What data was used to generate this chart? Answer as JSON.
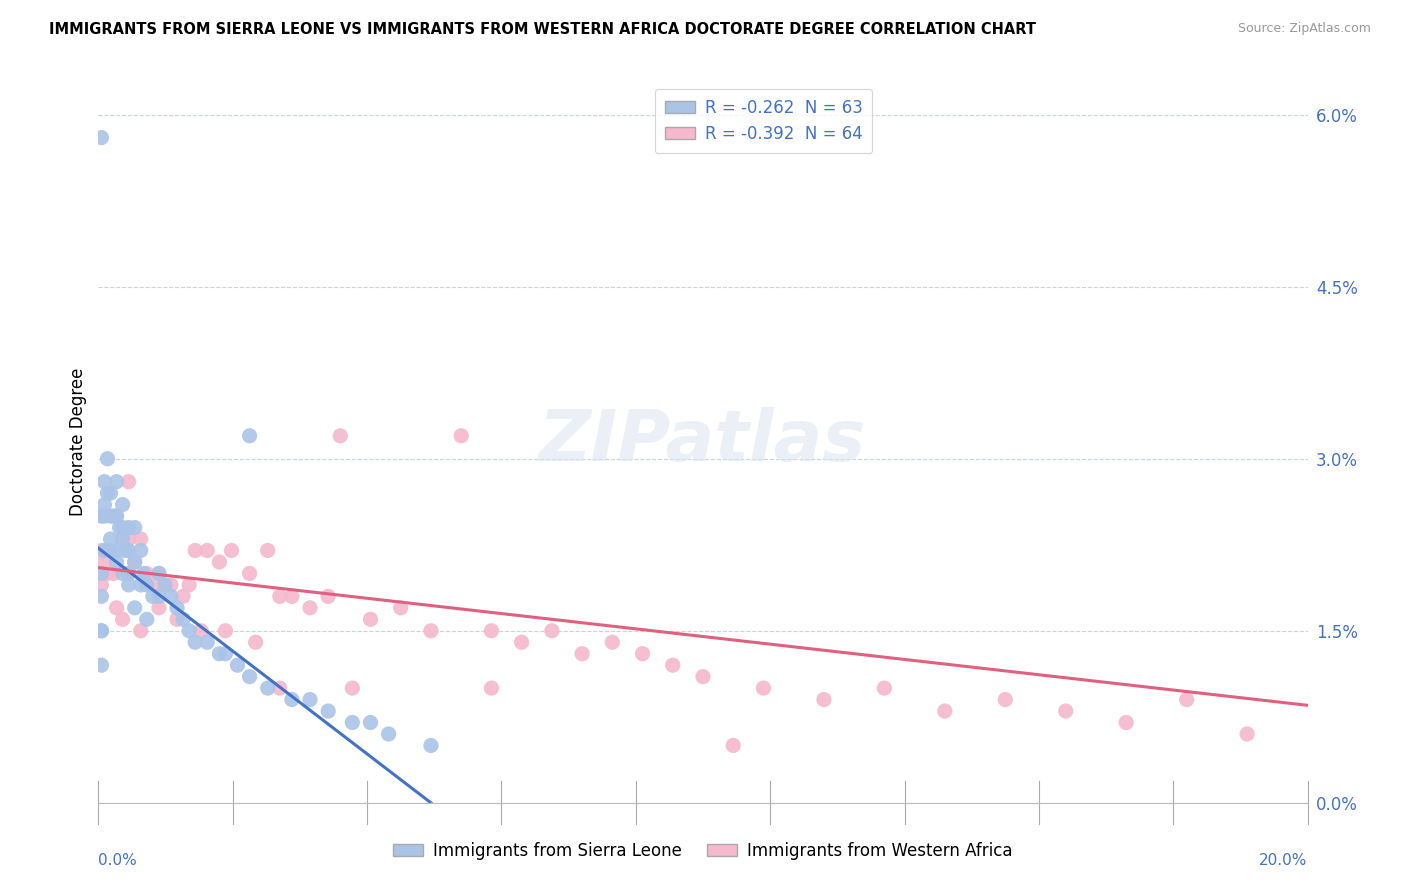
{
  "title": "IMMIGRANTS FROM SIERRA LEONE VS IMMIGRANTS FROM WESTERN AFRICA DOCTORATE DEGREE CORRELATION CHART",
  "source": "Source: ZipAtlas.com",
  "ylabel": "Doctorate Degree",
  "bottom_legend_blue": "Immigrants from Sierra Leone",
  "bottom_legend_pink": "Immigrants from Western Africa",
  "legend_blue_label": "R = -0.262  N = 63",
  "legend_pink_label": "R = -0.392  N = 64",
  "blue_color": "#aac4e8",
  "pink_color": "#f5b8cc",
  "blue_line_color": "#4472c4",
  "pink_line_color": "#e06080",
  "dashed_line_color": "#9ab0cc",
  "text_color_blue": "#4472c4",
  "xlim": [
    0.0,
    20.0
  ],
  "ylim": [
    0.0,
    6.3
  ],
  "yticks": [
    0.0,
    1.5,
    3.0,
    4.5,
    6.0
  ],
  "ytick_labels": [
    "0.0%",
    "1.5%",
    "3.0%",
    "4.5%",
    "6.0%"
  ],
  "blue_line_x0": 0.0,
  "blue_line_y0": 2.22,
  "blue_line_x1": 5.5,
  "blue_line_y1": 0.0,
  "blue_dash_x1": 10.0,
  "pink_line_x0": 0.0,
  "pink_line_y0": 2.05,
  "pink_line_x1": 20.0,
  "pink_line_y1": 0.85,
  "blue_points_x": [
    0.05,
    0.05,
    0.05,
    0.05,
    0.05,
    0.1,
    0.1,
    0.1,
    0.15,
    0.15,
    0.2,
    0.2,
    0.2,
    0.25,
    0.3,
    0.3,
    0.3,
    0.35,
    0.4,
    0.4,
    0.4,
    0.45,
    0.5,
    0.5,
    0.5,
    0.6,
    0.6,
    0.7,
    0.7,
    0.75,
    0.8,
    0.9,
    1.0,
    1.0,
    1.1,
    1.2,
    1.3,
    1.4,
    1.5,
    1.6,
    1.8,
    2.0,
    2.1,
    2.3,
    2.5,
    2.8,
    3.2,
    3.5,
    3.8,
    4.2,
    4.5,
    4.8,
    5.5,
    0.05,
    0.05,
    0.1,
    0.2,
    0.3,
    0.4,
    0.5,
    0.6,
    0.8,
    2.5
  ],
  "blue_points_y": [
    5.8,
    2.5,
    2.0,
    1.8,
    1.5,
    2.8,
    2.5,
    2.2,
    3.0,
    2.7,
    2.7,
    2.5,
    2.2,
    2.5,
    2.8,
    2.5,
    2.2,
    2.4,
    2.6,
    2.3,
    2.0,
    2.2,
    2.4,
    2.2,
    1.9,
    2.4,
    2.1,
    2.2,
    1.9,
    2.0,
    1.9,
    1.8,
    2.0,
    1.8,
    1.9,
    1.8,
    1.7,
    1.6,
    1.5,
    1.4,
    1.4,
    1.3,
    1.3,
    1.2,
    1.1,
    1.0,
    0.9,
    0.9,
    0.8,
    0.7,
    0.7,
    0.6,
    0.5,
    1.5,
    1.2,
    2.6,
    2.3,
    2.1,
    2.4,
    2.0,
    1.7,
    1.6,
    3.2
  ],
  "pink_points_x": [
    0.05,
    0.05,
    0.1,
    0.15,
    0.2,
    0.25,
    0.3,
    0.4,
    0.5,
    0.5,
    0.6,
    0.7,
    0.8,
    0.9,
    1.0,
    1.1,
    1.2,
    1.4,
    1.5,
    1.6,
    1.8,
    2.0,
    2.2,
    2.5,
    2.8,
    3.0,
    3.2,
    3.5,
    3.8,
    4.0,
    4.5,
    5.0,
    5.5,
    6.0,
    6.5,
    7.0,
    7.5,
    8.0,
    8.5,
    9.0,
    9.5,
    10.0,
    11.0,
    12.0,
    13.0,
    14.0,
    15.0,
    16.0,
    17.0,
    18.0,
    19.0,
    0.3,
    0.4,
    0.5,
    0.7,
    1.0,
    1.3,
    1.7,
    2.1,
    2.6,
    3.0,
    4.2,
    6.5,
    10.5
  ],
  "pink_points_y": [
    2.2,
    1.9,
    2.1,
    2.0,
    2.2,
    2.0,
    2.5,
    2.3,
    2.3,
    2.0,
    2.1,
    2.3,
    2.0,
    1.9,
    2.0,
    1.9,
    1.9,
    1.8,
    1.9,
    2.2,
    2.2,
    2.1,
    2.2,
    2.0,
    2.2,
    1.8,
    1.8,
    1.7,
    1.8,
    3.2,
    1.6,
    1.7,
    1.5,
    3.2,
    1.5,
    1.4,
    1.5,
    1.3,
    1.4,
    1.3,
    1.2,
    1.1,
    1.0,
    0.9,
    1.0,
    0.8,
    0.9,
    0.8,
    0.7,
    0.9,
    0.6,
    1.7,
    1.6,
    2.8,
    1.5,
    1.7,
    1.6,
    1.5,
    1.5,
    1.4,
    1.0,
    1.0,
    1.0,
    0.5
  ]
}
